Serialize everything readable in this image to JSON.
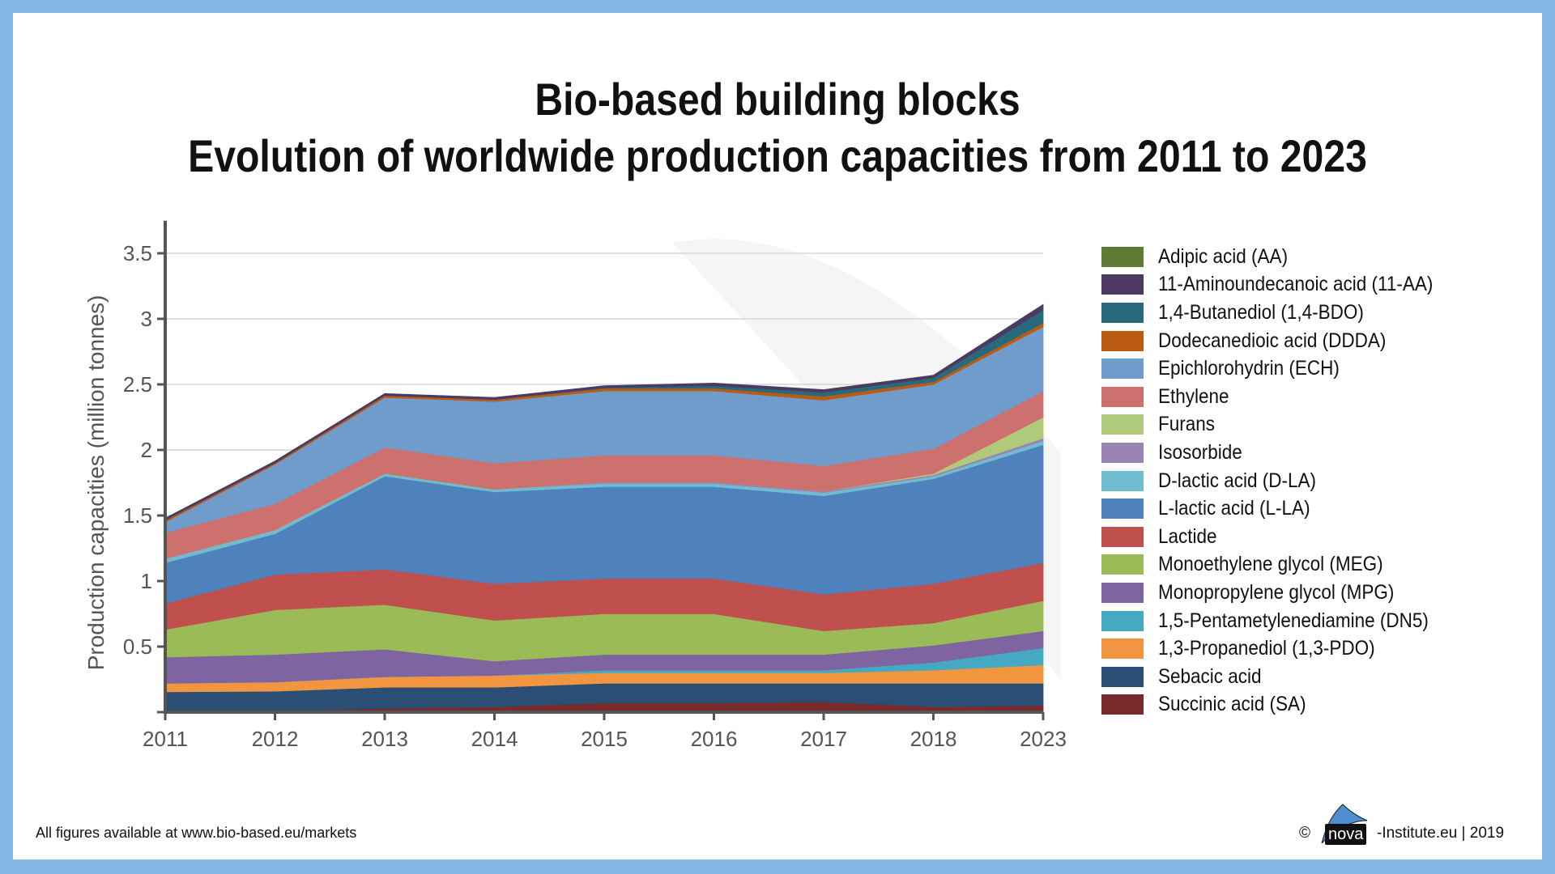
{
  "header": {
    "title_line1": "Bio-based building blocks",
    "title_line2": "Evolution of worldwide production capacities from 2011 to 2023"
  },
  "footer": {
    "left_prefix": "All figures available at ",
    "left_url": "www.bio-based.eu/markets",
    "copyright_symbol": "©",
    "logo_text": "nova",
    "right_suffix": "-Institute.eu | 2019"
  },
  "chart_data": {
    "type": "area",
    "stacked": true,
    "title": "Bio-based building blocks — Evolution of worldwide production capacities from 2011 to 2023",
    "xlabel": "",
    "ylabel": "Production capacities (million tonnes)",
    "ylim": [
      0,
      3.6
    ],
    "yticks": [
      0.5,
      1,
      1.5,
      2,
      2.5,
      3,
      3.5
    ],
    "ytick_labels": [
      "0.5",
      "1",
      "1.5",
      "2",
      "2.5",
      "3",
      "3.5"
    ],
    "grid": true,
    "legend_position": "right",
    "categories": [
      "2011",
      "2012",
      "2013",
      "2014",
      "2015",
      "2016",
      "2017",
      "2018",
      "2023"
    ],
    "series_stack_order": "bottom-to-top",
    "series": [
      {
        "name": "Succinic acid (SA)",
        "color": "#7b2a2b",
        "values": [
          0.0,
          0.005,
          0.03,
          0.04,
          0.07,
          0.07,
          0.08,
          0.04,
          0.05
        ]
      },
      {
        "name": "Sebacic acid",
        "color": "#2b4f74",
        "values": [
          0.155,
          0.155,
          0.16,
          0.15,
          0.15,
          0.15,
          0.14,
          0.18,
          0.17
        ]
      },
      {
        "name": "1,3-Propanediol (1,3-PDO)",
        "color": "#f29540",
        "values": [
          0.065,
          0.07,
          0.08,
          0.09,
          0.08,
          0.08,
          0.08,
          0.1,
          0.14
        ]
      },
      {
        "name": "1,5-Pentametylenediamine (DN5)",
        "color": "#46a9c4",
        "values": [
          0.0,
          0.0,
          0.0,
          0.0,
          0.02,
          0.02,
          0.02,
          0.06,
          0.13
        ]
      },
      {
        "name": "Monopropylene glycol (MPG)",
        "color": "#7e64a0",
        "values": [
          0.2,
          0.21,
          0.21,
          0.11,
          0.12,
          0.12,
          0.12,
          0.13,
          0.13
        ]
      },
      {
        "name": "Monoethylene glycol (MEG)",
        "color": "#9bbb59",
        "values": [
          0.21,
          0.34,
          0.34,
          0.31,
          0.31,
          0.31,
          0.18,
          0.17,
          0.23
        ]
      },
      {
        "name": "Lactide",
        "color": "#c0504d",
        "values": [
          0.2,
          0.27,
          0.27,
          0.28,
          0.27,
          0.27,
          0.28,
          0.3,
          0.29
        ]
      },
      {
        "name": "L-lactic acid (L-LA)",
        "color": "#4f81bd",
        "values": [
          0.31,
          0.31,
          0.71,
          0.7,
          0.7,
          0.7,
          0.75,
          0.8,
          0.9
        ]
      },
      {
        "name": "D-lactic acid (D-LA)",
        "color": "#6fbcd1",
        "values": [
          0.03,
          0.03,
          0.02,
          0.02,
          0.025,
          0.025,
          0.025,
          0.02,
          0.03
        ]
      },
      {
        "name": "Isosorbide",
        "color": "#9a84b6",
        "values": [
          0.0,
          0.0,
          0.0,
          0.0,
          0.01,
          0.01,
          0.01,
          0.01,
          0.02
        ]
      },
      {
        "name": "Furans",
        "color": "#afca7a",
        "values": [
          0.0,
          0.0,
          0.0,
          0.0,
          0.0,
          0.0,
          0.0,
          0.01,
          0.16
        ]
      },
      {
        "name": "Ethylene",
        "color": "#cd716f",
        "values": [
          0.2,
          0.2,
          0.2,
          0.2,
          0.205,
          0.205,
          0.195,
          0.19,
          0.2
        ]
      },
      {
        "name": "Epichlorohydrin (ECH)",
        "color": "#709ccc",
        "values": [
          0.08,
          0.3,
          0.38,
          0.47,
          0.49,
          0.49,
          0.5,
          0.49,
          0.49
        ]
      },
      {
        "name": "Dodecanedioic acid (DDDA)",
        "color": "#bb5a13",
        "values": [
          0.015,
          0.01,
          0.015,
          0.015,
          0.02,
          0.02,
          0.03,
          0.02,
          0.03
        ]
      },
      {
        "name": "1,4-Butanediol (1,4-BDO)",
        "color": "#266a7c",
        "values": [
          0.0,
          0.0,
          0.0,
          0.0,
          0.005,
          0.02,
          0.03,
          0.03,
          0.1
        ]
      },
      {
        "name": "11-Aminoundecanoic acid (11-AA)",
        "color": "#4c3a63",
        "values": [
          0.015,
          0.015,
          0.015,
          0.015,
          0.015,
          0.02,
          0.02,
          0.02,
          0.04
        ]
      },
      {
        "name": "Adipic acid (AA)",
        "color": "#5f7a33",
        "values": [
          0.0,
          0.0,
          0.0,
          0.0,
          0.0,
          0.0,
          0.0,
          0.0,
          0.0
        ]
      }
    ],
    "legend": [
      {
        "label": "Adipic acid (AA)",
        "color": "#5f7a33"
      },
      {
        "label": "11-Aminoundecanoic acid (11-AA)",
        "color": "#4c3a63"
      },
      {
        "label": "1,4-Butanediol (1,4-BDO)",
        "color": "#266a7c"
      },
      {
        "label": "Dodecanedioic acid (DDDA)",
        "color": "#bb5a13"
      },
      {
        "label": "Epichlorohydrin (ECH)",
        "color": "#709ccc"
      },
      {
        "label": "Ethylene",
        "color": "#cd716f"
      },
      {
        "label": "Furans",
        "color": "#afca7a"
      },
      {
        "label": "Isosorbide",
        "color": "#9a84b6"
      },
      {
        "label": "D-lactic acid (D-LA)",
        "color": "#6fbcd1"
      },
      {
        "label": "L-lactic acid (L-LA)",
        "color": "#4f81bd"
      },
      {
        "label": "Lactide",
        "color": "#c0504d"
      },
      {
        "label": "Monoethylene glycol (MEG)",
        "color": "#9bbb59"
      },
      {
        "label": "Monopropylene glycol (MPG)",
        "color": "#7e64a0"
      },
      {
        "label": "1,5-Pentametylenediamine (DN5)",
        "color": "#46a9c4"
      },
      {
        "label": "1,3-Propanediol (1,3-PDO)",
        "color": "#f29540"
      },
      {
        "label": "Sebacic acid",
        "color": "#2b4f74"
      },
      {
        "label": "Succinic acid (SA)",
        "color": "#7b2a2b"
      }
    ]
  }
}
